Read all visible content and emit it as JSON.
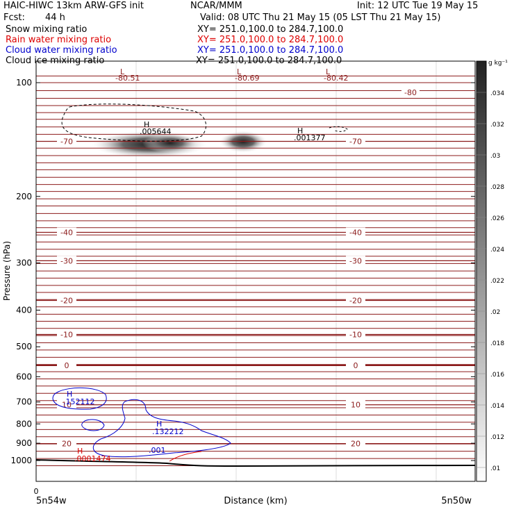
{
  "header": {
    "left_line1": "HAIC-HIWC 13km ARW-GFS init",
    "center_line1": "NCAR/MMM",
    "right_line1": "Init: 12 UTC Tue 19 May 15",
    "fcst_label": "Fcst:",
    "fcst_value": "44 h",
    "valid": "Valid: 08 UTC Thu 21 May 15 (05 LST Thu 21 May 15)"
  },
  "fields": [
    {
      "name": "Snow mixing ratio",
      "xy": "XY= 251.0,100.0 to 284.7,100.0",
      "color": "#000000"
    },
    {
      "name": "Rain water mixing ratio",
      "xy": "XY= 251.0,100.0 to 284.7,100.0",
      "color": "#dd0000"
    },
    {
      "name": "Cloud water mixing ratio",
      "xy": "XY= 251.0,100.0 to 284.7,100.0",
      "color": "#0000cc"
    },
    {
      "name": "Cloud ice mixing ratio",
      "xy": "XY= 251.0,100.0 to 284.7,100.0",
      "color": "#000000"
    }
  ],
  "colorbar": {
    "unit": "g kg⁻¹",
    "ticks": [
      ".034",
      ".032",
      ".03",
      ".028",
      ".026",
      ".024",
      ".022",
      ".02",
      ".018",
      ".016",
      ".014",
      ".012",
      ".01"
    ]
  },
  "chart_data": {
    "type": "cross-section",
    "ylabel": "Pressure (hPa)",
    "xlabel": "Distance (km)",
    "x_start_label": "5n54w",
    "x_end_label": "5n50w",
    "x_origin_tick": "0",
    "y_scale": "log",
    "ylim": [
      1050,
      80
    ],
    "y_ticks": [
      100,
      200,
      300,
      400,
      500,
      600,
      700,
      800,
      900,
      1000
    ],
    "temperature_contours_C": {
      "color": "#8b1a1a",
      "labeled": [
        {
          "value": "-70",
          "p": 143
        },
        {
          "value": "-40",
          "p": 249
        },
        {
          "value": "-30",
          "p": 296
        },
        {
          "value": "-20",
          "p": 377
        },
        {
          "value": "-10",
          "p": 464
        },
        {
          "value": "0",
          "p": 560
        },
        {
          "value": "10",
          "p": 712
        },
        {
          "value": "20",
          "p": 902
        }
      ],
      "top_value": "-80"
    },
    "lows": [
      {
        "marker": "L",
        "value": "-80.51"
      },
      {
        "marker": "L",
        "value": "-80.69"
      },
      {
        "marker": "L",
        "value": "-80.42"
      }
    ],
    "highs": [
      {
        "marker": "H",
        "value": ".005644",
        "field": "snow"
      },
      {
        "marker": "H",
        "value": ".001377",
        "field": "snow"
      },
      {
        "marker": "H",
        "value": ".152112",
        "field": "cloud water"
      },
      {
        "marker": "H",
        "value": ".132212",
        "field": "cloud water"
      },
      {
        "marker": "H",
        "value": ".0001474",
        "field": "rain water"
      }
    ],
    "cloud_water_contour_label": ".001"
  }
}
